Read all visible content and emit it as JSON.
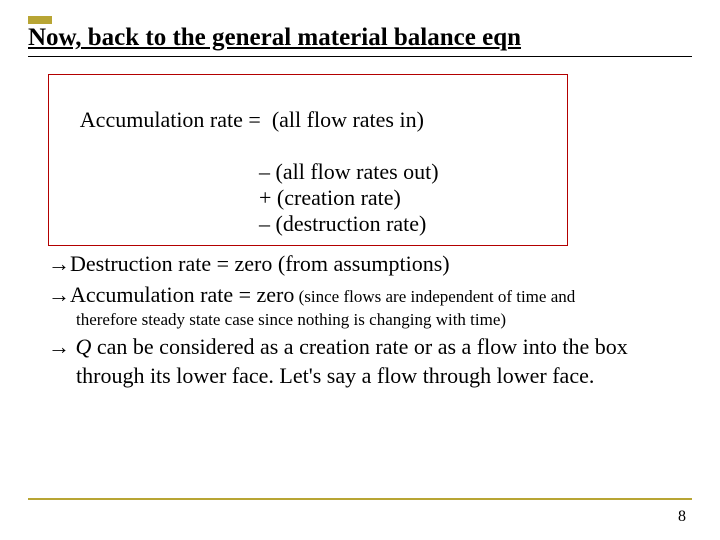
{
  "colors": {
    "accent": "#b8a534",
    "box_border": "#b30000",
    "text": "#000000",
    "background": "#ffffff"
  },
  "title": "Now, back to the general material balance eqn",
  "equation": {
    "lhs": "Accumulation rate =",
    "terms": [
      "  (all flow rates in)",
      "– (all flow rates out)",
      "+ (creation rate)",
      "– (destruction rate)"
    ]
  },
  "bullets": {
    "b1_arrow": "→",
    "b1": "Destruction rate = zero (from assumptions)",
    "b2_arrow": "→",
    "b2_main": "Accumulation rate = zero",
    "b2_small1": "  (since flows are independent of time and",
    "b2_small2": "therefore steady state case since nothing is changing with time)",
    "b3_arrow": "→",
    "b3_q": " Q",
    "b3_rest": " can be considered as a creation rate or as a flow into the box through its lower face. Let's say a flow through lower face."
  },
  "page_number": "8"
}
